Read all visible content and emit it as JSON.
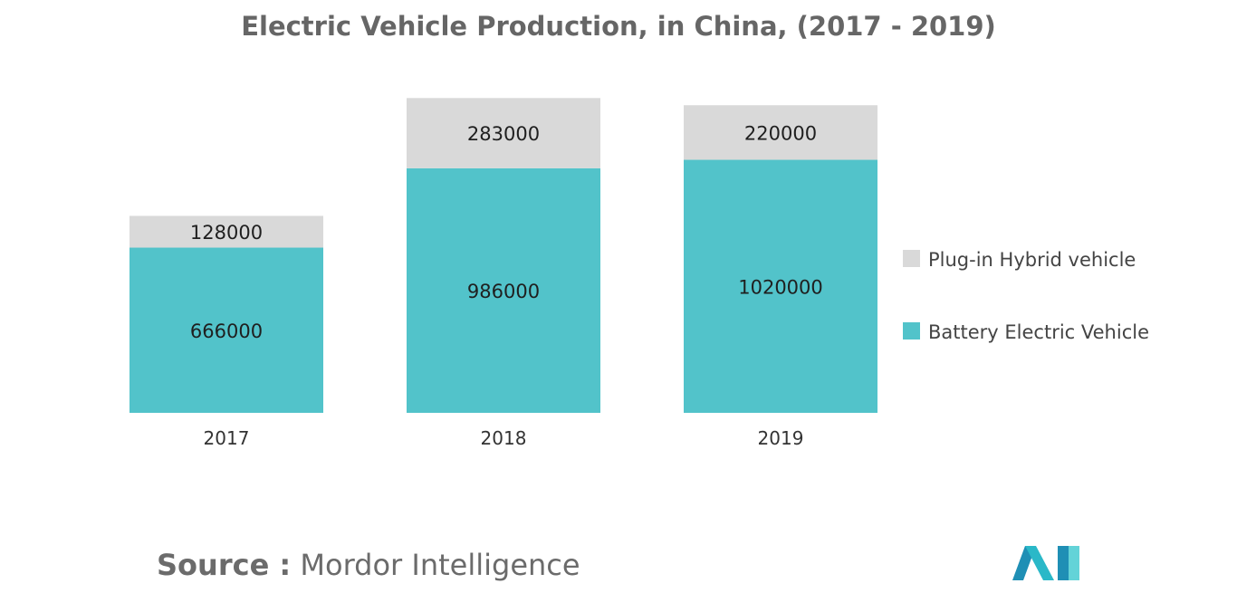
{
  "chart_data": {
    "type": "bar",
    "stacked": true,
    "title": "Electric Vehicle Production, in China, (2017 - 2019)",
    "categories": [
      "2017",
      "2018",
      "2019"
    ],
    "series": [
      {
        "name": "Battery Electric Vehicle",
        "values": [
          666000,
          986000,
          1020000
        ],
        "color": "#52c3ca"
      },
      {
        "name": "Plug-in Hybrid vehicle",
        "values": [
          128000,
          283000,
          220000
        ],
        "color": "#d9d9d9"
      }
    ],
    "legend_order": [
      1,
      0
    ],
    "legend_position": "right",
    "grid": false,
    "xlabel": "",
    "ylabel": ""
  },
  "source": {
    "label": "Source :",
    "text": "Mordor Intelligence"
  },
  "logo": {
    "colors": [
      "#1f8fb5",
      "#2ab8c8",
      "#63d3d8"
    ]
  }
}
